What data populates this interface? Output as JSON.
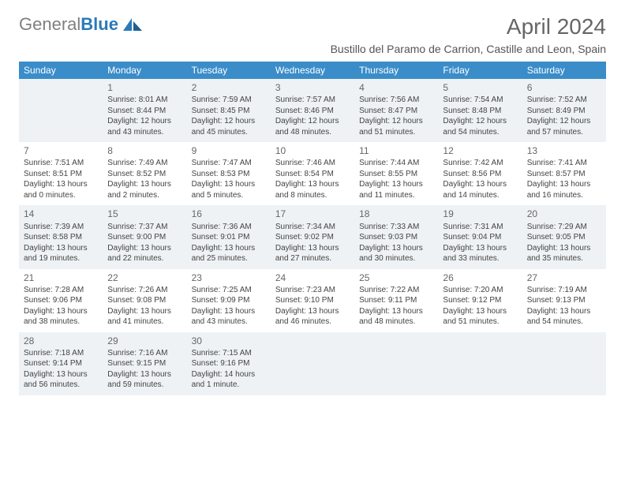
{
  "logo": {
    "text_gray": "General",
    "text_blue": "Blue"
  },
  "header": {
    "month_title": "April 2024",
    "location": "Bustillo del Paramo de Carrion, Castille and Leon, Spain"
  },
  "colors": {
    "header_bg": "#3a8dc9",
    "header_fg": "#ffffff",
    "row_alt_bg": "#eef2f5",
    "page_bg": "#ffffff",
    "logo_gray": "#808080",
    "logo_blue": "#2a7ab9",
    "text": "#444444"
  },
  "days_of_week": [
    "Sunday",
    "Monday",
    "Tuesday",
    "Wednesday",
    "Thursday",
    "Friday",
    "Saturday"
  ],
  "weeks": [
    [
      null,
      {
        "n": "1",
        "sunrise": "8:01 AM",
        "sunset": "8:44 PM",
        "daylight": "12 hours and 43 minutes."
      },
      {
        "n": "2",
        "sunrise": "7:59 AM",
        "sunset": "8:45 PM",
        "daylight": "12 hours and 45 minutes."
      },
      {
        "n": "3",
        "sunrise": "7:57 AM",
        "sunset": "8:46 PM",
        "daylight": "12 hours and 48 minutes."
      },
      {
        "n": "4",
        "sunrise": "7:56 AM",
        "sunset": "8:47 PM",
        "daylight": "12 hours and 51 minutes."
      },
      {
        "n": "5",
        "sunrise": "7:54 AM",
        "sunset": "8:48 PM",
        "daylight": "12 hours and 54 minutes."
      },
      {
        "n": "6",
        "sunrise": "7:52 AM",
        "sunset": "8:49 PM",
        "daylight": "12 hours and 57 minutes."
      }
    ],
    [
      {
        "n": "7",
        "sunrise": "7:51 AM",
        "sunset": "8:51 PM",
        "daylight": "13 hours and 0 minutes."
      },
      {
        "n": "8",
        "sunrise": "7:49 AM",
        "sunset": "8:52 PM",
        "daylight": "13 hours and 2 minutes."
      },
      {
        "n": "9",
        "sunrise": "7:47 AM",
        "sunset": "8:53 PM",
        "daylight": "13 hours and 5 minutes."
      },
      {
        "n": "10",
        "sunrise": "7:46 AM",
        "sunset": "8:54 PM",
        "daylight": "13 hours and 8 minutes."
      },
      {
        "n": "11",
        "sunrise": "7:44 AM",
        "sunset": "8:55 PM",
        "daylight": "13 hours and 11 minutes."
      },
      {
        "n": "12",
        "sunrise": "7:42 AM",
        "sunset": "8:56 PM",
        "daylight": "13 hours and 14 minutes."
      },
      {
        "n": "13",
        "sunrise": "7:41 AM",
        "sunset": "8:57 PM",
        "daylight": "13 hours and 16 minutes."
      }
    ],
    [
      {
        "n": "14",
        "sunrise": "7:39 AM",
        "sunset": "8:58 PM",
        "daylight": "13 hours and 19 minutes."
      },
      {
        "n": "15",
        "sunrise": "7:37 AM",
        "sunset": "9:00 PM",
        "daylight": "13 hours and 22 minutes."
      },
      {
        "n": "16",
        "sunrise": "7:36 AM",
        "sunset": "9:01 PM",
        "daylight": "13 hours and 25 minutes."
      },
      {
        "n": "17",
        "sunrise": "7:34 AM",
        "sunset": "9:02 PM",
        "daylight": "13 hours and 27 minutes."
      },
      {
        "n": "18",
        "sunrise": "7:33 AM",
        "sunset": "9:03 PM",
        "daylight": "13 hours and 30 minutes."
      },
      {
        "n": "19",
        "sunrise": "7:31 AM",
        "sunset": "9:04 PM",
        "daylight": "13 hours and 33 minutes."
      },
      {
        "n": "20",
        "sunrise": "7:29 AM",
        "sunset": "9:05 PM",
        "daylight": "13 hours and 35 minutes."
      }
    ],
    [
      {
        "n": "21",
        "sunrise": "7:28 AM",
        "sunset": "9:06 PM",
        "daylight": "13 hours and 38 minutes."
      },
      {
        "n": "22",
        "sunrise": "7:26 AM",
        "sunset": "9:08 PM",
        "daylight": "13 hours and 41 minutes."
      },
      {
        "n": "23",
        "sunrise": "7:25 AM",
        "sunset": "9:09 PM",
        "daylight": "13 hours and 43 minutes."
      },
      {
        "n": "24",
        "sunrise": "7:23 AM",
        "sunset": "9:10 PM",
        "daylight": "13 hours and 46 minutes."
      },
      {
        "n": "25",
        "sunrise": "7:22 AM",
        "sunset": "9:11 PM",
        "daylight": "13 hours and 48 minutes."
      },
      {
        "n": "26",
        "sunrise": "7:20 AM",
        "sunset": "9:12 PM",
        "daylight": "13 hours and 51 minutes."
      },
      {
        "n": "27",
        "sunrise": "7:19 AM",
        "sunset": "9:13 PM",
        "daylight": "13 hours and 54 minutes."
      }
    ],
    [
      {
        "n": "28",
        "sunrise": "7:18 AM",
        "sunset": "9:14 PM",
        "daylight": "13 hours and 56 minutes."
      },
      {
        "n": "29",
        "sunrise": "7:16 AM",
        "sunset": "9:15 PM",
        "daylight": "13 hours and 59 minutes."
      },
      {
        "n": "30",
        "sunrise": "7:15 AM",
        "sunset": "9:16 PM",
        "daylight": "14 hours and 1 minute."
      },
      null,
      null,
      null,
      null
    ]
  ],
  "labels": {
    "sunrise": "Sunrise: ",
    "sunset": "Sunset: ",
    "daylight": "Daylight: "
  }
}
